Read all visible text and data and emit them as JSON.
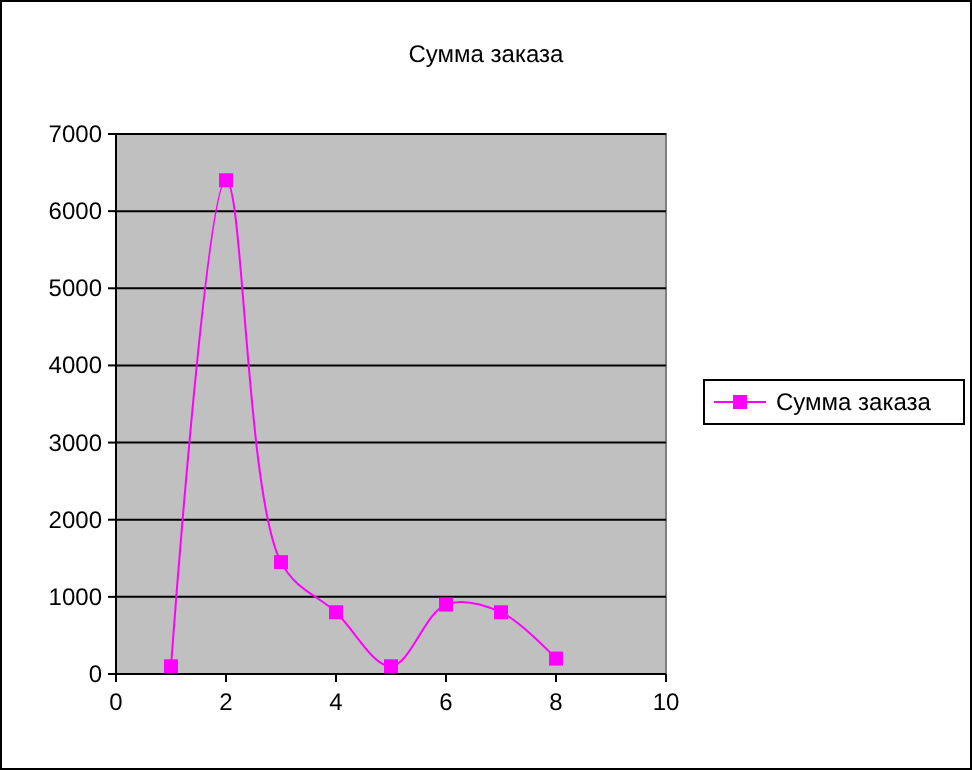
{
  "chart_data": {
    "type": "line",
    "title": "Сумма заказа",
    "x": [
      1,
      2,
      3,
      4,
      5,
      6,
      7,
      8
    ],
    "series": [
      {
        "name": "Сумма заказа",
        "color": "#ff00ff",
        "values": [
          100,
          6400,
          1450,
          800,
          100,
          900,
          800,
          200
        ]
      }
    ],
    "xlim": [
      0,
      10
    ],
    "xticks": [
      0,
      2,
      4,
      6,
      8,
      10
    ],
    "ylim": [
      0,
      7000
    ],
    "yticks": [
      0,
      1000,
      2000,
      3000,
      4000,
      5000,
      6000,
      7000
    ],
    "grid": "y",
    "legend": "right",
    "marker": "square",
    "line_style": "solid"
  }
}
